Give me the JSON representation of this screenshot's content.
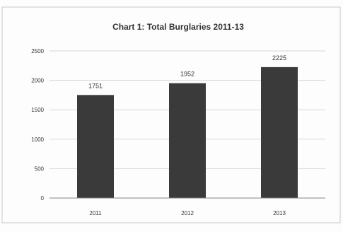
{
  "chart_data": {
    "type": "bar",
    "title": "Chart 1: Total Burglaries 2011-13",
    "categories": [
      "2011",
      "2012",
      "2013"
    ],
    "values": [
      1751,
      1952,
      2225
    ],
    "data_labels": [
      "1751",
      "1952",
      "2225"
    ],
    "ylim": [
      0,
      2500
    ],
    "yticks": [
      0,
      500,
      1000,
      1500,
      2000,
      2500
    ],
    "ytick_labels": [
      "0",
      "500",
      "1000",
      "1500",
      "2000",
      "2500"
    ],
    "xlabel": "",
    "ylabel": "",
    "grid": true,
    "legend": "none",
    "colors": {
      "bar": "#3a3a3a",
      "grid": "#d8d8d8",
      "axis": "#888888",
      "text": "#333333",
      "frame": "#c9c9c9"
    }
  }
}
